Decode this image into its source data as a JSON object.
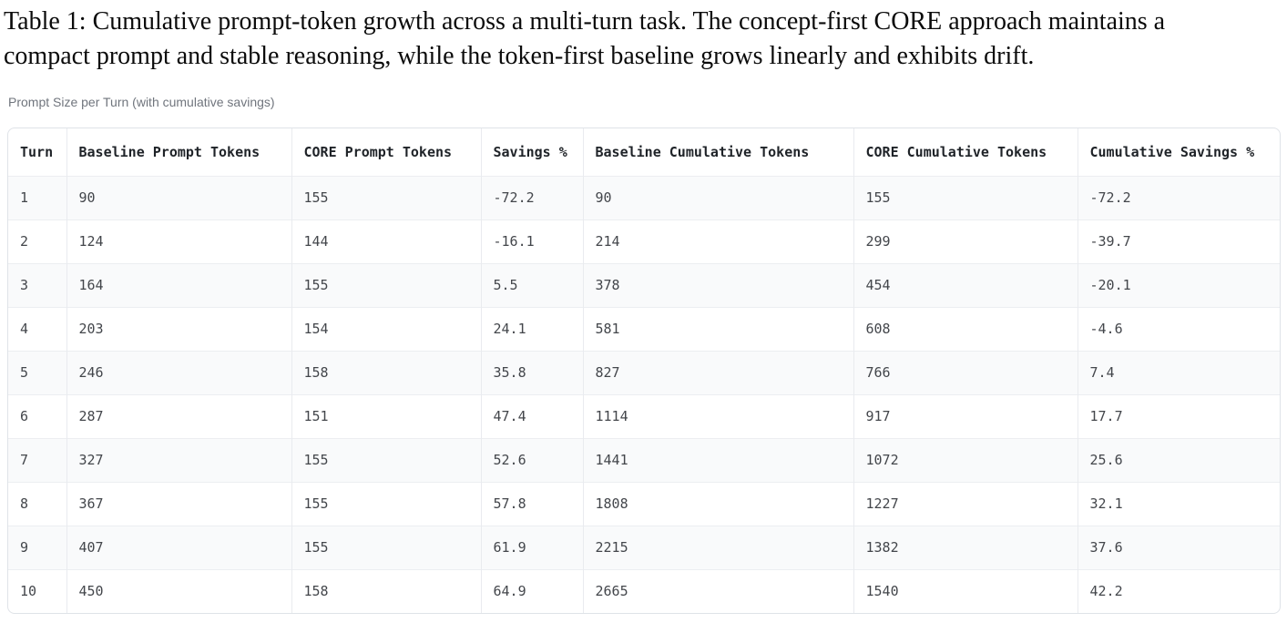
{
  "caption": "Table 1: Cumulative prompt-token growth across a multi-turn task. The concept-first CORE approach maintains a compact prompt and stable reasoning, while the token-first baseline grows linearly and exhibits drift.",
  "table": {
    "title": "Prompt Size per Turn (with cumulative savings)",
    "columns": [
      "Turn",
      "Baseline Prompt Tokens",
      "CORE Prompt Tokens",
      "Savings %",
      "Baseline Cumulative Tokens",
      "CORE Cumulative Tokens",
      "Cumulative Savings %"
    ],
    "rows": [
      [
        "1",
        "90",
        "155",
        "-72.2",
        "90",
        "155",
        "-72.2"
      ],
      [
        "2",
        "124",
        "144",
        "-16.1",
        "214",
        "299",
        "-39.7"
      ],
      [
        "3",
        "164",
        "155",
        "5.5",
        "378",
        "454",
        "-20.1"
      ],
      [
        "4",
        "203",
        "154",
        "24.1",
        "581",
        "608",
        "-4.6"
      ],
      [
        "5",
        "246",
        "158",
        "35.8",
        "827",
        "766",
        "7.4"
      ],
      [
        "6",
        "287",
        "151",
        "47.4",
        "1114",
        "917",
        "17.7"
      ],
      [
        "7",
        "327",
        "155",
        "52.6",
        "1441",
        "1072",
        "25.6"
      ],
      [
        "8",
        "367",
        "155",
        "57.8",
        "1808",
        "1227",
        "32.1"
      ],
      [
        "9",
        "407",
        "155",
        "61.9",
        "2215",
        "1382",
        "37.6"
      ],
      [
        "10",
        "450",
        "158",
        "64.9",
        "2665",
        "1540",
        "42.2"
      ]
    ]
  },
  "colors": {
    "row_stripe": "#f9fafb",
    "table_border": "#dfe3e8",
    "header_text": "#1f2328",
    "cell_text": "#43464b",
    "title_text": "#70757d"
  }
}
